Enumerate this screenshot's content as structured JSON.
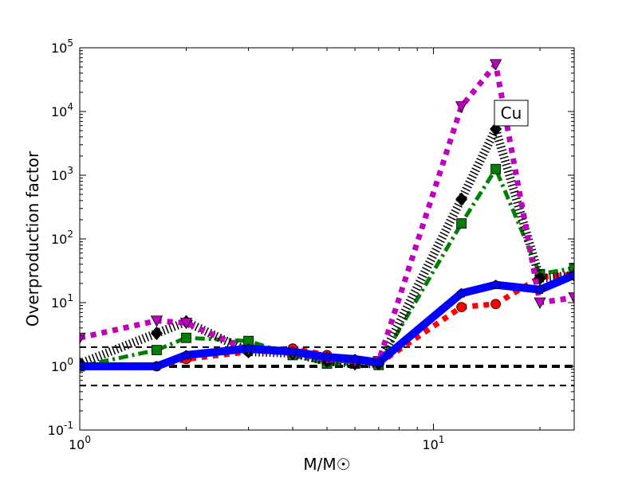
{
  "chart_data": {
    "type": "line",
    "title": "",
    "xlabel": "M/M☉",
    "ylabel": "Overproduction factor",
    "xscale": "log",
    "yscale": "log",
    "xlim": [
      1,
      25
    ],
    "ylim": [
      0.1,
      100000
    ],
    "x_ticks": [
      {
        "base": "10",
        "exp": "0",
        "value": 1
      },
      {
        "base": "10",
        "exp": "1",
        "value": 10
      }
    ],
    "y_ticks": [
      {
        "base": "10",
        "exp": "-1",
        "value": 0.1
      },
      {
        "base": "10",
        "exp": "0",
        "value": 1
      },
      {
        "base": "10",
        "exp": "1",
        "value": 10
      },
      {
        "base": "10",
        "exp": "2",
        "value": 100
      },
      {
        "base": "10",
        "exp": "3",
        "value": 1000
      },
      {
        "base": "10",
        "exp": "4",
        "value": 10000
      },
      {
        "base": "10",
        "exp": "5",
        "value": 100000
      }
    ],
    "annotation": "Cu",
    "reference_lines": [
      0.5,
      1,
      2
    ],
    "x": [
      1,
      1.65,
      2,
      3,
      4,
      5,
      6,
      7,
      12,
      15,
      20,
      25
    ],
    "series": [
      {
        "name": "red-circles",
        "color": "#ff0000",
        "marker": "circle",
        "style": "dotted",
        "values": [
          1.0,
          1.0,
          1.3,
          1.7,
          1.9,
          1.5,
          1.2,
          1.1,
          8.5,
          9.5,
          25,
          28
        ]
      },
      {
        "name": "green-squares",
        "color": "#008000",
        "marker": "square",
        "style": "dashdot",
        "values": [
          1.0,
          1.8,
          2.8,
          2.5,
          1.5,
          1.1,
          1.1,
          1.05,
          175,
          1250,
          28,
          35
        ]
      },
      {
        "name": "black-diamonds",
        "color": "#000000",
        "marker": "diamond",
        "style": "hatched",
        "values": [
          1.1,
          3.3,
          5.0,
          1.7,
          1.6,
          1.2,
          1.1,
          1.1,
          420,
          5300,
          24,
          27
        ]
      },
      {
        "name": "magenta-triangles",
        "color": "#bf00bf",
        "marker": "triangle-down",
        "style": "dotted",
        "values": [
          2.8,
          5.2,
          4.8,
          1.8,
          1.6,
          1.3,
          1.2,
          1.2,
          12000,
          55000,
          10,
          12
        ]
      },
      {
        "name": "blue-pentagons",
        "color": "#0000ff",
        "marker": "pentagon",
        "style": "solid",
        "values": [
          1.0,
          1.0,
          1.5,
          1.9,
          1.7,
          1.4,
          1.3,
          1.15,
          14,
          19,
          16,
          27
        ]
      }
    ]
  }
}
